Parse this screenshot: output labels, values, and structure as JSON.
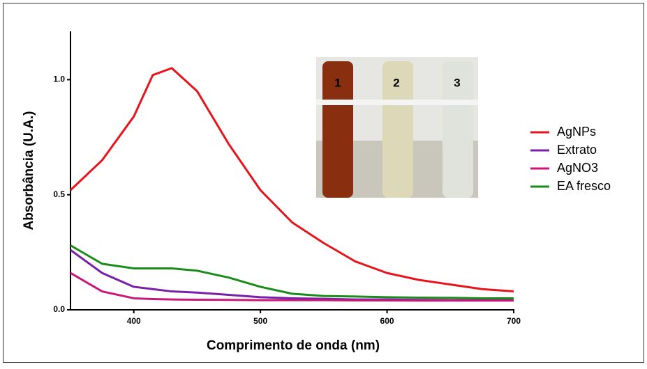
{
  "chart_data": {
    "type": "line",
    "xlabel": "Comprimento de onda (nm)",
    "ylabel": "Absorbância (U.A.)",
    "x": [
      350,
      375,
      400,
      415,
      430,
      450,
      475,
      500,
      525,
      550,
      575,
      600,
      625,
      650,
      675,
      700
    ],
    "series": [
      {
        "name": "AgNPs",
        "color": "#e8141c",
        "values": [
          0.52,
          0.65,
          0.84,
          1.02,
          1.05,
          0.95,
          0.72,
          0.52,
          0.38,
          0.29,
          0.21,
          0.16,
          0.13,
          0.11,
          0.09,
          0.08
        ]
      },
      {
        "name": "Extrato",
        "color": "#7a1fa8",
        "values": [
          0.26,
          0.16,
          0.1,
          0.09,
          0.08,
          0.075,
          0.065,
          0.055,
          0.05,
          0.048,
          0.045,
          0.045,
          0.043,
          0.042,
          0.042,
          0.042
        ]
      },
      {
        "name": "AgNO3",
        "color": "#c8197a",
        "values": [
          0.16,
          0.08,
          0.05,
          0.047,
          0.045,
          0.044,
          0.043,
          0.042,
          0.042,
          0.042,
          0.041,
          0.041,
          0.04,
          0.04,
          0.04,
          0.04
        ]
      },
      {
        "name": "EA fresco",
        "color": "#1a8c1a",
        "values": [
          0.28,
          0.2,
          0.18,
          0.18,
          0.18,
          0.17,
          0.14,
          0.1,
          0.07,
          0.06,
          0.058,
          0.055,
          0.053,
          0.052,
          0.05,
          0.05
        ]
      }
    ],
    "xlim": [
      350,
      700
    ],
    "xticks": [
      400,
      500,
      600,
      700
    ],
    "ylim": [
      0,
      1.21
    ],
    "yticks": [
      {
        "value": 0,
        "label": "0.0"
      },
      0.5,
      {
        "value": 1,
        "label": "1.0"
      }
    ],
    "legend": "right",
    "inset_labels": [
      "1",
      "2",
      "3"
    ]
  }
}
